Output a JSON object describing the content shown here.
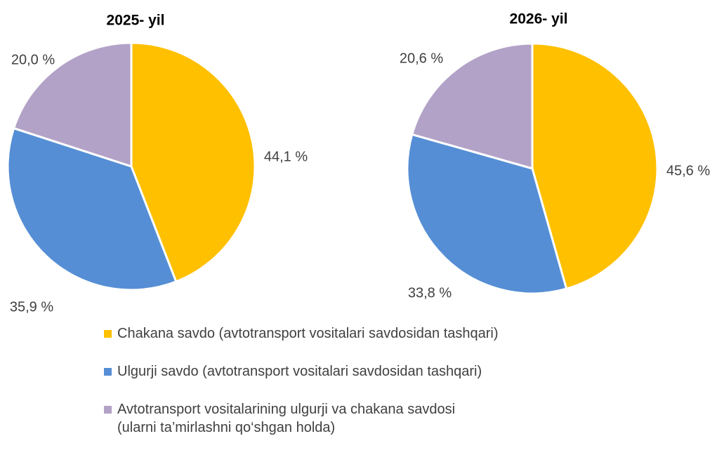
{
  "chart_data": [
    {
      "type": "pie",
      "title": "2025- yil",
      "values": [
        44.1,
        35.9,
        20.0
      ],
      "value_labels": [
        "44,1 %",
        "35,9 %",
        "20,0 %"
      ]
    },
    {
      "type": "pie",
      "title": "2026- yil",
      "values": [
        45.6,
        33.8,
        20.6
      ],
      "value_labels": [
        "45,6 %",
        "33,8 %",
        "20,6 %"
      ]
    }
  ],
  "legend": {
    "names": [
      "Chakana savdo (avtotransport vositalari savdosidan tashqari)",
      "Ulgurji savdo (avtotransport vositalari savdosidan tashqari)",
      "Avtotransport vositalarining ulgurji va chakana savdosi\n(ularni ta’mirlashni qo‘shgan holda)"
    ],
    "colors": [
      "#ffc000",
      "#558ed5",
      "#b3a2c7"
    ]
  }
}
